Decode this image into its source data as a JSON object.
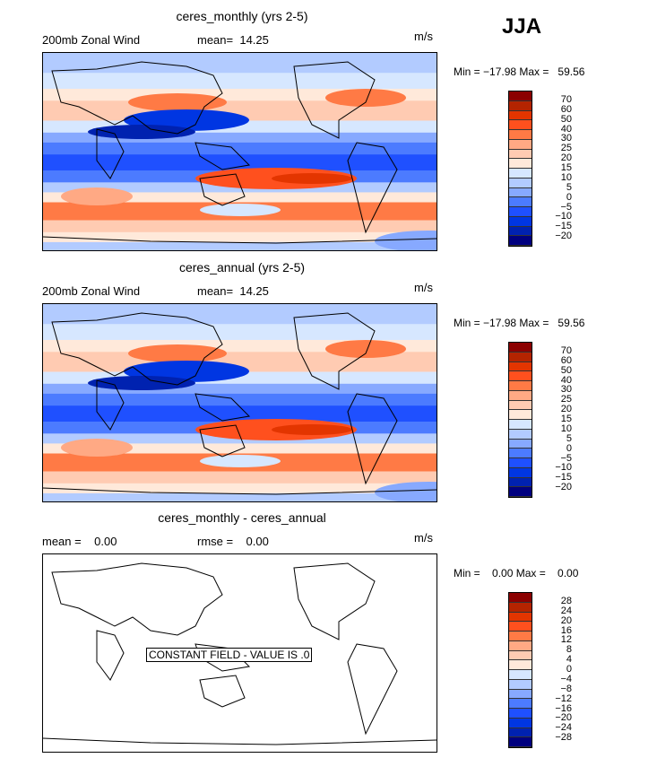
{
  "season": "JJA",
  "panels": [
    {
      "title": "ceres_monthly (yrs 2-5)",
      "left_label": "200mb Zonal Wind",
      "stat1": "mean=  14.25",
      "stat2": "",
      "units": "m/s",
      "minmax": "Min = −17.98 Max =   59.56",
      "constant_text": ""
    },
    {
      "title": "ceres_annual (yrs 2-5)",
      "left_label": "200mb Zonal Wind",
      "stat1": "mean=  14.25",
      "stat2": "",
      "units": "m/s",
      "minmax": "Min = −17.98 Max =   59.56",
      "constant_text": ""
    },
    {
      "title": "ceres_monthly - ceres_annual",
      "left_label": "mean =    0.00",
      "stat1": "",
      "stat2": "rmse =    0.00",
      "units": "m/s",
      "minmax": "Min =    0.00 Max =    0.00",
      "constant_text": "CONSTANT FIELD - VALUE IS .0"
    }
  ],
  "colorbar_main": {
    "labels": [
      "70",
      "60",
      "50",
      "40",
      "30",
      "25",
      "20",
      "15",
      "10",
      "5",
      "0",
      "−5",
      "−10",
      "−15",
      "−20"
    ]
  },
  "colorbar_diff": {
    "labels": [
      "28",
      "24",
      "20",
      "16",
      "12",
      "8",
      "4",
      "0",
      "−4",
      "−8",
      "−12",
      "−16",
      "−20",
      "−24",
      "−28"
    ]
  },
  "colors": [
    "#8b0000",
    "#b42400",
    "#e33500",
    "#ff501e",
    "#ff7a45",
    "#ffa984",
    "#ffcbb2",
    "#ffe9da",
    "#d6e7ff",
    "#b2cbff",
    "#87a9ff",
    "#4c7bff",
    "#1f50ff",
    "#0036e2",
    "#0022b0",
    "#00007f"
  ]
}
